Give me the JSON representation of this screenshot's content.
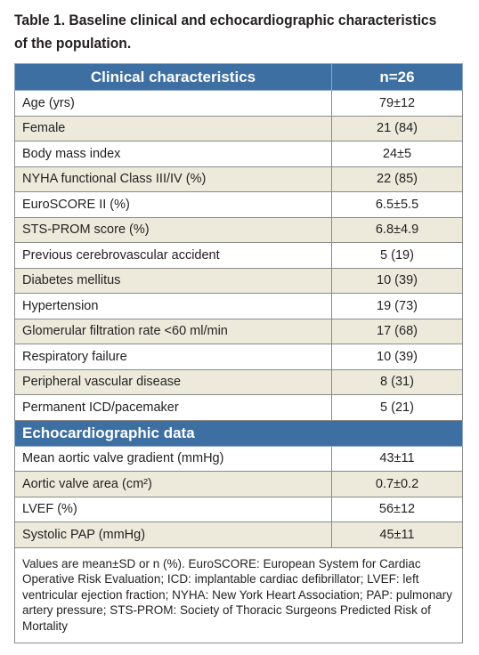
{
  "caption": {
    "line1": "Table 1. Baseline clinical and echocardiographic characteristics",
    "line2": "of the population."
  },
  "header": {
    "col1": "Clinical characteristics",
    "col2": "n=26"
  },
  "clinical_rows": [
    {
      "label": "Age (yrs)",
      "value": "79±12"
    },
    {
      "label": "Female",
      "value": "21 (84)"
    },
    {
      "label": "Body mass index",
      "value": "24±5"
    },
    {
      "label": "NYHA functional Class III/IV (%)",
      "value": "22 (85)"
    },
    {
      "label": "EuroSCORE II (%)",
      "value": "6.5±5.5"
    },
    {
      "label": "STS-PROM score (%)",
      "value": "6.8±4.9"
    },
    {
      "label": "Previous cerebrovascular accident",
      "value": "5 (19)"
    },
    {
      "label": "Diabetes mellitus",
      "value": "10 (39)"
    },
    {
      "label": "Hypertension",
      "value": "19 (73)"
    },
    {
      "label": "Glomerular filtration rate <60 ml/min",
      "value": "17 (68)"
    },
    {
      "label": "Respiratory failure",
      "value": "10 (39)"
    },
    {
      "label": "Peripheral vascular disease",
      "value": "8 (31)"
    },
    {
      "label": "Permanent ICD/pacemaker",
      "value": "5 (21)"
    }
  ],
  "echo_section": {
    "title": "Echocardiographic data"
  },
  "echo_rows": [
    {
      "label": "Mean aortic valve gradient (mmHg)",
      "value": "43±11"
    },
    {
      "label": "Aortic valve area (cm²)",
      "value": "0.7±0.2"
    },
    {
      "label": "LVEF (%)",
      "value": "56±12"
    },
    {
      "label": "Systolic PAP (mmHg)",
      "value": "45±11"
    }
  ],
  "footnote": "Values are mean±SD or n (%). EuroSCORE: European System for Cardiac Operative Risk Evaluation; ICD: implantable cardiac defibrillator; LVEF: left ventricular ejection fraction; NYHA: New York Heart Association; PAP: pulmonary artery pressure; STS-PROM: Society of Thoracic Surgeons Predicted Risk of Mortality",
  "colors": {
    "header_bg": "#3d6fa3",
    "stripe_bg": "#edeadc",
    "border": "#8a8a8a"
  }
}
